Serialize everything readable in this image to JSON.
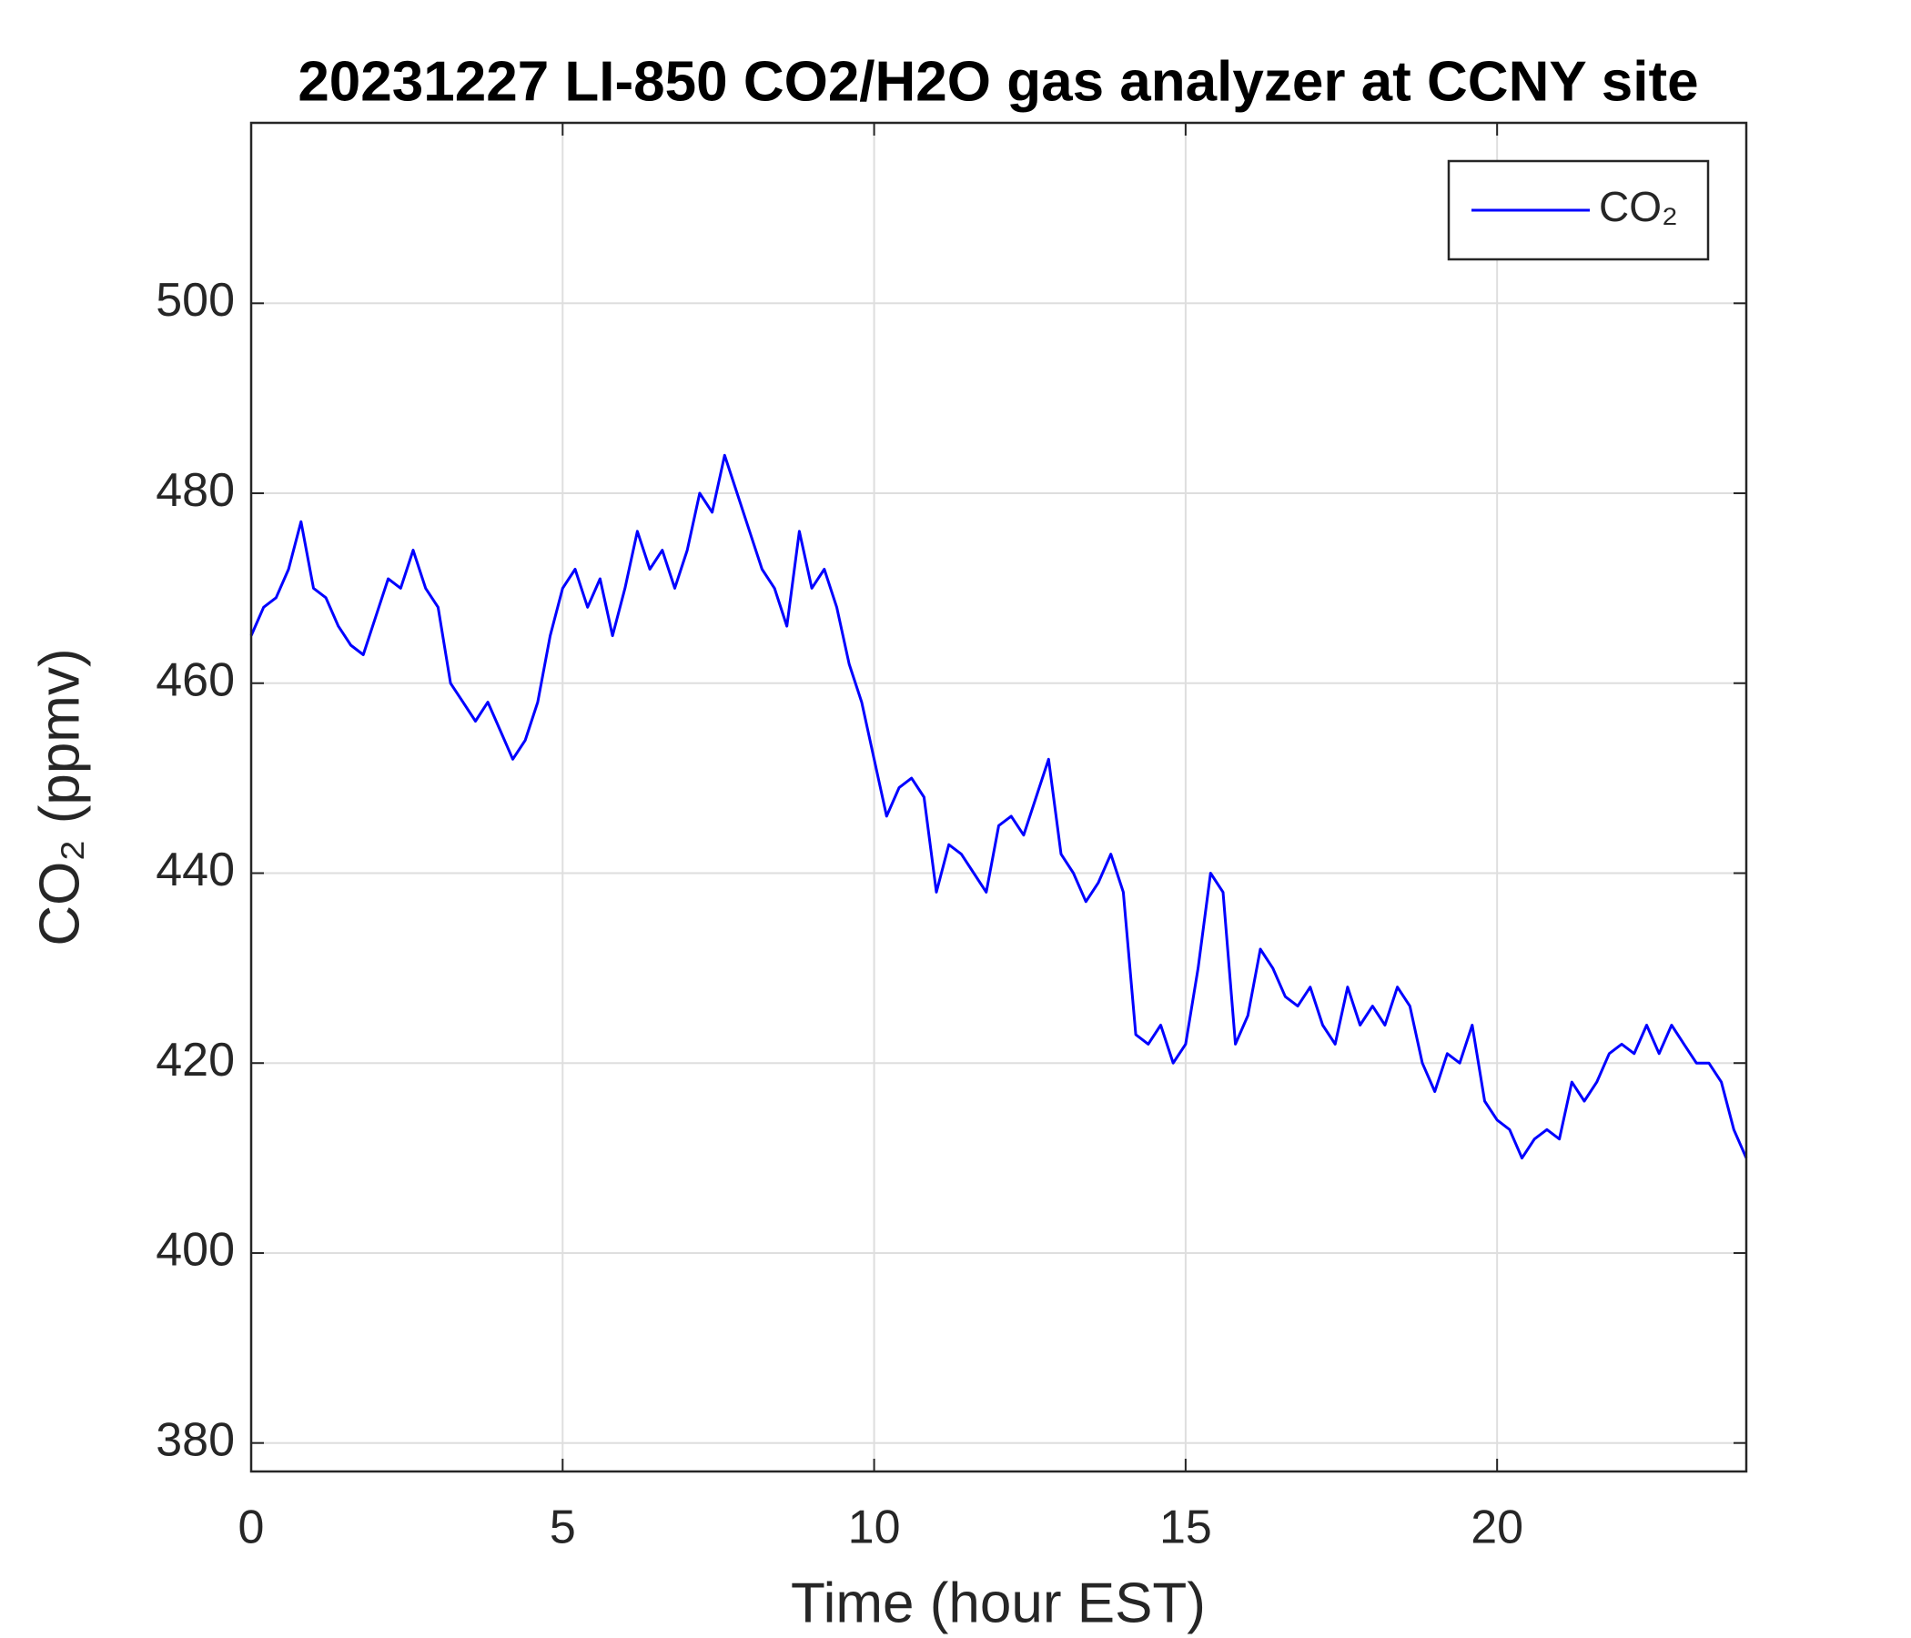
{
  "chart_data": {
    "type": "line",
    "title": "20231227 LI-850 CO2/H2O gas analyzer at CCNY site",
    "xlabel": "Time (hour EST)",
    "ylabel": "CO₂ (ppmv)",
    "x": [
      0,
      0.2,
      0.4,
      0.6,
      0.8,
      1,
      1.2,
      1.4,
      1.6,
      1.8,
      2,
      2.2,
      2.4,
      2.6,
      2.8,
      3,
      3.2,
      3.4,
      3.6,
      3.8,
      4,
      4.2,
      4.4,
      4.6,
      4.8,
      5,
      5.2,
      5.4,
      5.6,
      5.8,
      6,
      6.2,
      6.4,
      6.6,
      6.8,
      7,
      7.2,
      7.4,
      7.6,
      7.8,
      8,
      8.2,
      8.4,
      8.6,
      8.8,
      9,
      9.2,
      9.4,
      9.6,
      9.8,
      10,
      10.2,
      10.4,
      10.6,
      10.8,
      11,
      11.2,
      11.4,
      11.6,
      11.8,
      12,
      12.2,
      12.4,
      12.6,
      12.8,
      13,
      13.2,
      13.4,
      13.6,
      13.8,
      14,
      14.2,
      14.4,
      14.6,
      14.8,
      15,
      15.2,
      15.4,
      15.6,
      15.8,
      16,
      16.2,
      16.4,
      16.6,
      16.8,
      17,
      17.2,
      17.4,
      17.6,
      17.8,
      18,
      18.2,
      18.4,
      18.6,
      18.8,
      19,
      19.2,
      19.4,
      19.6,
      19.8,
      20,
      20.2,
      20.4,
      20.6,
      20.8,
      21,
      21.2,
      21.4,
      21.6,
      21.8,
      22,
      22.2,
      22.4,
      22.6,
      22.8,
      23,
      23.2,
      23.4,
      23.6,
      23.8,
      24
    ],
    "series": [
      {
        "name": "CO₂",
        "color": "#0000ff",
        "values": [
          465,
          468,
          469,
          472,
          477,
          470,
          469,
          466,
          464,
          463,
          467,
          471,
          470,
          474,
          470,
          468,
          460,
          458,
          456,
          458,
          455,
          452,
          454,
          458,
          465,
          470,
          472,
          468,
          471,
          465,
          470,
          476,
          472,
          474,
          470,
          474,
          480,
          478,
          484,
          480,
          476,
          472,
          470,
          466,
          476,
          470,
          472,
          468,
          462,
          458,
          452,
          446,
          449,
          450,
          448,
          438,
          443,
          442,
          440,
          438,
          445,
          446,
          444,
          448,
          452,
          442,
          440,
          437,
          439,
          442,
          438,
          423,
          422,
          424,
          420,
          422,
          430,
          440,
          438,
          422,
          425,
          432,
          430,
          427,
          426,
          428,
          424,
          422,
          428,
          424,
          426,
          424,
          428,
          426,
          420,
          417,
          421,
          420,
          424,
          416,
          414,
          413,
          410,
          412,
          413,
          412,
          418,
          416,
          418,
          421,
          422,
          421,
          424,
          421,
          424,
          422,
          420,
          420,
          418,
          413,
          410
        ]
      }
    ],
    "xlim": [
      0,
      24
    ],
    "xticks": [
      0,
      5,
      10,
      15,
      20
    ],
    "ylim": [
      377,
      519
    ],
    "yticks": [
      380,
      400,
      420,
      440,
      460,
      480,
      500
    ],
    "grid": true,
    "legend": "upper right"
  }
}
